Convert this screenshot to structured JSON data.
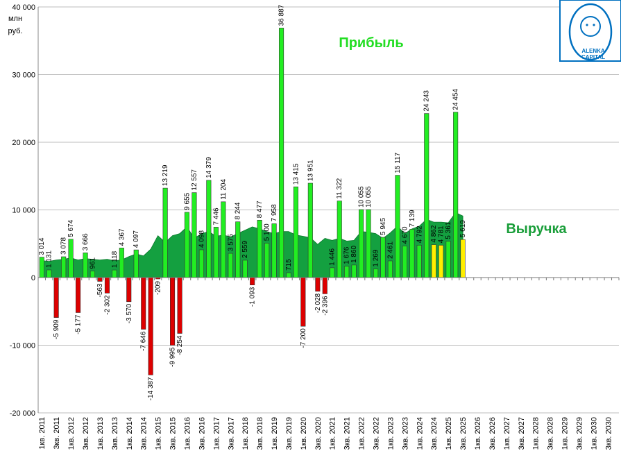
{
  "chart_data": {
    "type": "bar",
    "unit_label_lines": [
      "млн",
      "руб."
    ],
    "annotations": {
      "profit": "Прибыль",
      "revenue": "Выручка"
    },
    "logo": {
      "lines": [
        "ALENKA",
        "CAPITAL"
      ]
    },
    "ylim": [
      -20000,
      40000
    ],
    "y_ticks": [
      40000,
      30000,
      20000,
      10000,
      0,
      -10000,
      -20000
    ],
    "y_tick_labels": [
      "40 000",
      "30 000",
      "20 000",
      "10 000",
      "0",
      "-10 000",
      "-20 000"
    ],
    "categories": [
      "1кв. 2011",
      "2кв. 2011",
      "3кв. 2011",
      "4кв. 2011",
      "1кв. 2012",
      "2кв. 2012",
      "3кв. 2012",
      "4кв. 2012",
      "1кв. 2013",
      "2кв. 2013",
      "3кв. 2013",
      "4кв. 2013",
      "1кв. 2014",
      "2кв. 2014",
      "3кв. 2014",
      "4кв. 2014",
      "1кв. 2015",
      "2кв. 2015",
      "3кв. 2015",
      "4кв. 2015",
      "1кв. 2016",
      "2кв. 2016",
      "3кв. 2016",
      "4кв. 2016",
      "1кв. 2017",
      "2кв. 2017",
      "3кв. 2017",
      "4кв. 2017",
      "1кв. 2018",
      "2кв. 2018",
      "3кв. 2018",
      "4кв. 2018",
      "1кв. 2019",
      "2кв. 2019",
      "3кв. 2019",
      "4кв. 2019",
      "1кв. 2020",
      "2кв. 2020",
      "3кв. 2020",
      "4кв. 2020",
      "1кв. 2021",
      "2кв. 2021",
      "3кв. 2021",
      "4кв. 2021",
      "1кв. 2022",
      "2кв. 2022",
      "3кв. 2022",
      "4кв. 2022",
      "1кв. 2023",
      "2кв. 2023",
      "3кв. 2023",
      "4кв. 2023",
      "1кв. 2024",
      "2кв. 2024",
      "3кв. 2024",
      "4кв. 2024",
      "1кв. 2025",
      "2кв. 2025",
      "3кв. 2025",
      "4кв. 2025",
      "1кв. 2026",
      "2кв. 2026",
      "3кв. 2026",
      "4кв. 2026",
      "1кв. 2027",
      "2кв. 2027",
      "3кв. 2027",
      "4кв. 2027",
      "1кв. 2028",
      "2кв. 2028",
      "3кв. 2028",
      "4кв. 2028",
      "1кв. 2029",
      "2кв. 2029",
      "3кв. 2029",
      "4кв. 2029",
      "1кв. 2030",
      "2кв. 2030",
      "3кв. 2030",
      "4кв. 2030"
    ],
    "axis_label_categories": [
      "1кв. 2011",
      "3кв. 2011",
      "1кв. 2012",
      "3кв. 2012",
      "1кв. 2013",
      "3кв. 2013",
      "1кв. 2014",
      "3кв. 2014",
      "1кв. 2015",
      "3кв. 2015",
      "1кв. 2016",
      "3кв. 2016",
      "1кв. 2017",
      "3кв. 2017",
      "1кв. 2018",
      "3кв. 2018",
      "1кв. 2019",
      "3кв. 2019",
      "1кв. 2020",
      "3кв. 2020",
      "1кв. 2021",
      "3кв. 2021",
      "1кв. 2022",
      "3кв. 2022",
      "1кв. 2023",
      "3кв. 2023",
      "1кв. 2024",
      "3кв. 2024",
      "1кв. 2025",
      "3кв. 2025",
      "1кв. 2026",
      "3кв. 2026",
      "1кв. 2027",
      "3кв. 2027",
      "1кв. 2028",
      "3кв. 2028",
      "1кв. 2029",
      "3кв. 2029",
      "1кв. 2030",
      "3кв. 2030"
    ],
    "profit": [
      3014,
      1131,
      -5909,
      3078,
      5674,
      -5177,
      3666,
      961,
      -563,
      -2302,
      1118,
      4367,
      -3570,
      4097,
      -7646,
      -14387,
      -209,
      13219,
      -9995,
      -8254,
      9655,
      12557,
      4098,
      14379,
      7446,
      11204,
      3575,
      8244,
      2559,
      -1093,
      8477,
      5100,
      7958,
      36887,
      715,
      13415,
      -7200,
      13951,
      -2028,
      -2396,
      1446,
      11322,
      1676,
      1860,
      10055,
      10055,
      1269,
      5945,
      2461,
      15117,
      4670,
      7139,
      4792,
      24243,
      4862,
      4781,
      5361,
      24454,
      5619
    ],
    "profit_labels": [
      "3 014",
      "1 131",
      "-5 909",
      "3 078",
      "5 674",
      "-5 177",
      "3 666",
      "961",
      "-563",
      "-2 302",
      "1 118",
      "4 367",
      "-3 570",
      "4 097",
      "-7 646",
      "-14 387",
      "-209",
      "13 219",
      "-9 995",
      "-8 254",
      "9 655",
      "12 557",
      "4 098",
      "14 379",
      "7 446",
      "11 204",
      "3 575",
      "8 244",
      "2 559",
      "-1 093",
      "8 477",
      "5 100",
      "7 958",
      "36 887",
      "715",
      "13 415",
      "-7 200",
      "13 951",
      "-2 028",
      "-2 396",
      "1 446",
      "11 322",
      "1 676",
      "1 860",
      "10 055",
      "10 055",
      "1 269",
      "5 945",
      "2 461",
      "15 117",
      "4 670",
      "7 139",
      "4 792",
      "24 243",
      "4 862",
      "4 781",
      "5 361",
      "24 454",
      "5 619"
    ],
    "highlighted_indices": [
      54,
      55,
      58
    ],
    "revenue": [
      2500,
      2400,
      2600,
      2700,
      2900,
      2600,
      2800,
      2700,
      2600,
      2700,
      2500,
      2600,
      3100,
      3500,
      3200,
      4200,
      6200,
      5200,
      6200,
      6500,
      7500,
      5800,
      6500,
      6800,
      6100,
      6300,
      6000,
      6500,
      7000,
      7500,
      7200,
      6800,
      6500,
      6800,
      6800,
      6300,
      6100,
      5900,
      4900,
      5800,
      5500,
      5800,
      5400,
      5500,
      6800,
      6700,
      6500,
      5800,
      6600,
      7600,
      6500,
      7200,
      7600,
      8600,
      8200,
      8200,
      8100,
      9600,
      9100
    ],
    "colors": {
      "profit_positive": "#22ee22",
      "profit_negative": "#dd0000",
      "profit_highlight": "#ffee00",
      "revenue_fill": "#14a040",
      "bar_stroke": "#333333",
      "revenue_annotation": "#1a9e3a",
      "profit_annotation": "#22dd22",
      "logo": "#0070c0"
    },
    "grid": true,
    "legend": "none"
  }
}
